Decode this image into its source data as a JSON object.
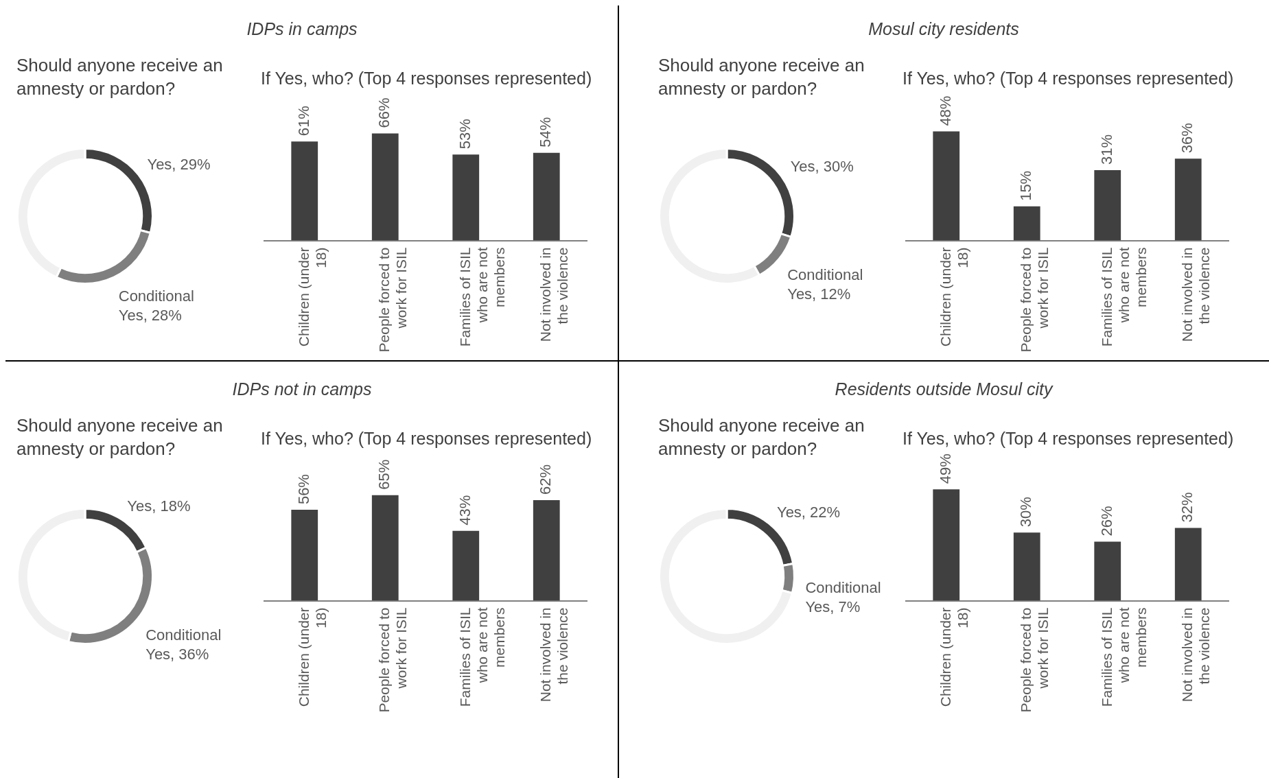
{
  "chart_data": [
    {
      "type": "other",
      "title": "IDPs in camps"
    },
    {
      "type": "donut",
      "title": "Should anyone receive an amnesty or pardon?",
      "categories": [
        null,
        null,
        null
      ],
      "values": [
        29,
        28,
        43
      ],
      "colors": [
        "#404040",
        "#7f7f7f",
        "#f0f0f0"
      ],
      "value_labels": [
        "Yes, 29%",
        "Conditional Yes, 28%",
        null
      ]
    },
    {
      "type": "bar",
      "title": "If Yes, who? (Top 4 responses represented)",
      "categories": [
        "Children (under 18)",
        "People forced to work for ISIL",
        "Families of ISIL who are not members",
        "Not involved in the violence"
      ],
      "values": [
        61,
        66,
        53,
        54
      ],
      "color": "#404040",
      "value_labels": [
        "61%",
        "66%",
        "53%",
        "54%"
      ],
      "tick_labels": "x"
    },
    {
      "type": "other",
      "title": "Mosul city residents"
    },
    {
      "type": "donut",
      "title": "Should anyone receive an amnesty or pardon?",
      "categories": [
        null,
        null,
        null
      ],
      "values": [
        30,
        12,
        58
      ],
      "colors": [
        "#404040",
        "#7f7f7f",
        "#f0f0f0"
      ],
      "value_labels": [
        "Yes, 30%",
        "Conditional Yes, 12%",
        null
      ]
    },
    {
      "type": "bar",
      "title": "If Yes, who? (Top 4 responses represented)",
      "categories": [
        "Children (under 18)",
        "People forced to work for ISIL",
        "Families of ISIL who are not members",
        "Not involved in the violence"
      ],
      "values": [
        48,
        15,
        31,
        36
      ],
      "color": "#404040",
      "value_labels": [
        "48%",
        "15%",
        "31%",
        "36%"
      ],
      "tick_labels": "x"
    },
    {
      "type": "other",
      "title": "IDPs not in camps"
    },
    {
      "type": "donut",
      "title": "Should anyone receive an amnesty or pardon?",
      "categories": [
        null,
        null,
        null
      ],
      "values": [
        18,
        36,
        46
      ],
      "colors": [
        "#404040",
        "#7f7f7f",
        "#f0f0f0"
      ],
      "value_labels": [
        "Yes, 18%",
        "Conditional Yes, 36%",
        null
      ]
    },
    {
      "type": "bar",
      "title": "If Yes, who? (Top 4 responses represented)",
      "categories": [
        "Children (under 18)",
        "People forced to work for ISIL",
        "Families of ISIL who are not members",
        "Not involved in the violence"
      ],
      "values": [
        56,
        65,
        43,
        62
      ],
      "color": "#404040",
      "value_labels": [
        "56%",
        "65%",
        "43%",
        "62%"
      ],
      "tick_labels": "x"
    },
    {
      "type": "other",
      "title": "Residents outside Mosul city"
    },
    {
      "type": "donut",
      "title": "Should anyone receive an amnesty or pardon?",
      "categories": [
        null,
        null,
        null
      ],
      "values": [
        22,
        7,
        71
      ],
      "colors": [
        "#404040",
        "#7f7f7f",
        "#f0f0f0"
      ],
      "value_labels": [
        "Yes, 22%",
        "Conditional Yes, 7%",
        null
      ]
    },
    {
      "type": "bar",
      "title": "If Yes, who? (Top 4 responses represented)",
      "categories": [
        "Children (under 18)",
        "People forced to work for ISIL",
        "Families of ISIL who are not members",
        "Not involved in the violence"
      ],
      "values": [
        49,
        30,
        26,
        32
      ],
      "color": "#404040",
      "value_labels": [
        "49%",
        "30%",
        "26%",
        "32%"
      ],
      "tick_labels": "x"
    }
  ]
}
